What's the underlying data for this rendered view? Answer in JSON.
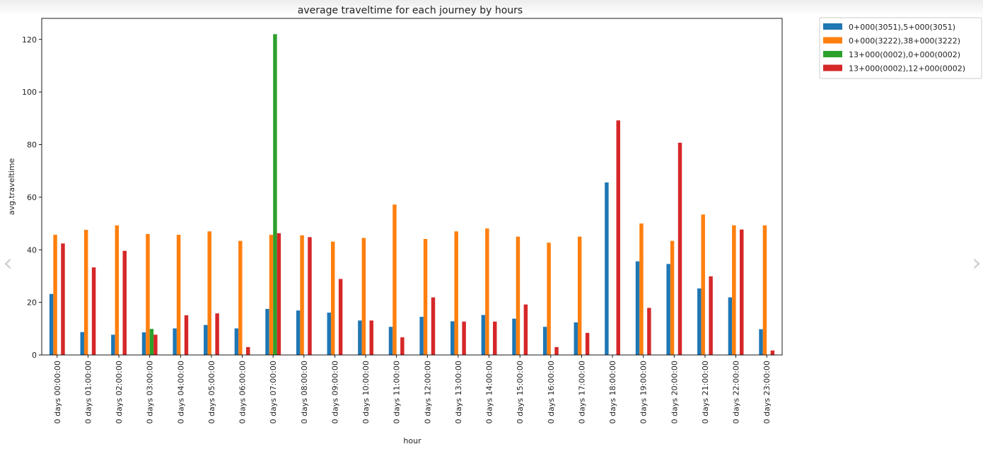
{
  "chart_data": {
    "type": "bar",
    "title": "average traveltime for each journey by hours",
    "xlabel": "hour",
    "ylabel": "avg.traveltime",
    "ylim": [
      0,
      128
    ],
    "yticks": [
      0,
      20,
      40,
      60,
      80,
      100,
      120
    ],
    "grid": false,
    "legend_position": "outside-top-right",
    "categories": [
      "0 days 00:00:00",
      "0 days 01:00:00",
      "0 days 02:00:00",
      "0 days 03:00:00",
      "0 days 04:00:00",
      "0 days 05:00:00",
      "0 days 06:00:00",
      "0 days 07:00:00",
      "0 days 08:00:00",
      "0 days 09:00:00",
      "0 days 10:00:00",
      "0 days 11:00:00",
      "0 days 12:00:00",
      "0 days 13:00:00",
      "0 days 14:00:00",
      "0 days 15:00:00",
      "0 days 16:00:00",
      "0 days 17:00:00",
      "0 days 18:00:00",
      "0 days 19:00:00",
      "0 days 20:00:00",
      "0 days 21:00:00",
      "0 days 22:00:00",
      "0 days 23:00:00"
    ],
    "series": [
      {
        "name": "0+000(3051),5+000(3051)",
        "color": "#1f77b4",
        "values": [
          23.2,
          8.7,
          7.7,
          8.6,
          10.1,
          11.4,
          10.1,
          17.5,
          16.9,
          16.1,
          13.1,
          10.7,
          14.5,
          12.8,
          15.2,
          13.8,
          10.7,
          12.4,
          65.6,
          35.6,
          34.6,
          25.3,
          21.9,
          9.8
        ]
      },
      {
        "name": "0+000(3222),38+000(3222)",
        "color": "#ff7f0e",
        "values": [
          45.7,
          47.6,
          49.3,
          46.0,
          45.7,
          47.0,
          43.4,
          45.7,
          45.5,
          43.1,
          44.5,
          57.2,
          44.1,
          47.0,
          48.1,
          45.0,
          42.7,
          45.0,
          0,
          50.0,
          43.4,
          53.4,
          49.3,
          49.3
        ]
      },
      {
        "name": "13+000(0002),0+000(0002)",
        "color": "#2ca02c",
        "values": [
          0,
          0,
          0,
          9.9,
          0,
          0,
          0,
          122.0,
          0,
          0,
          0,
          0,
          0,
          0,
          0,
          0,
          0,
          0,
          0,
          0,
          0,
          0,
          0,
          0
        ]
      },
      {
        "name": "13+000(0002),12+000(0002)",
        "color": "#d62728",
        "values": [
          42.4,
          33.3,
          39.6,
          7.7,
          15.1,
          15.8,
          3.0,
          46.3,
          44.8,
          28.9,
          13.1,
          6.7,
          21.9,
          12.7,
          12.7,
          19.2,
          3.0,
          8.4,
          89.2,
          17.9,
          80.7,
          29.9,
          47.7,
          1.7
        ]
      }
    ]
  }
}
